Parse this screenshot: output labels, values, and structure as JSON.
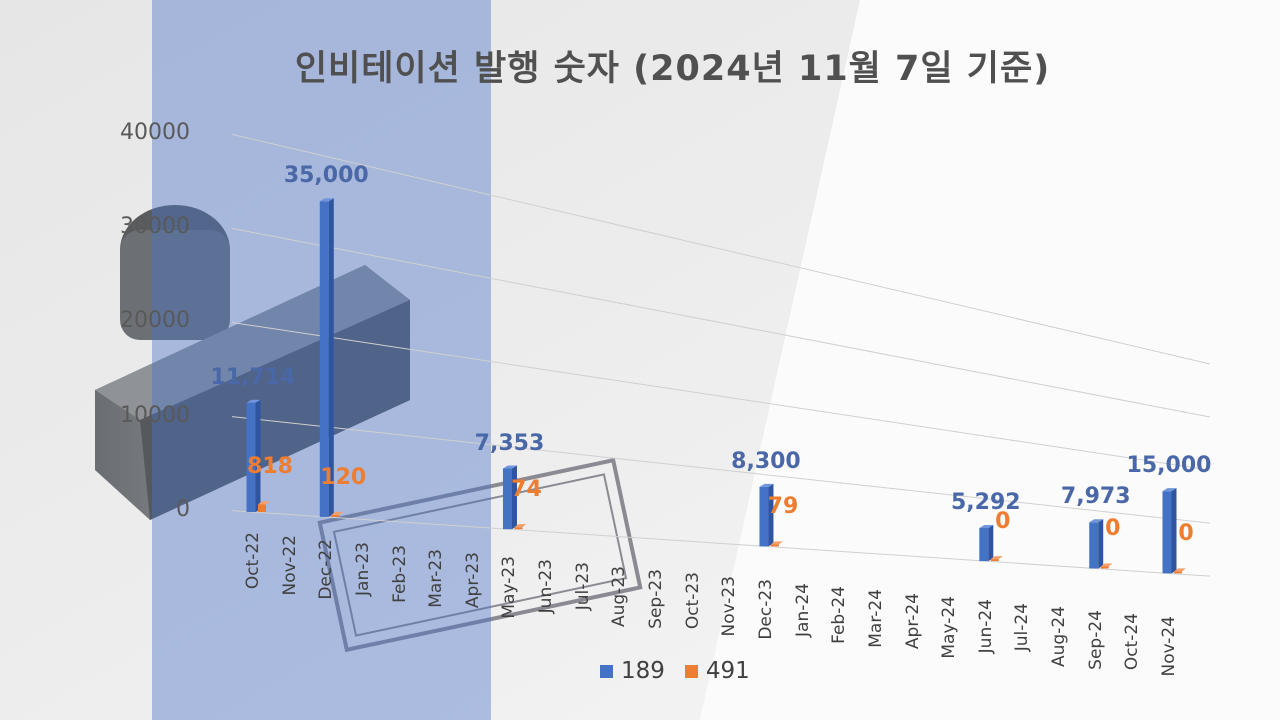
{
  "chart_data": {
    "type": "bar",
    "title": "인비테이션 발행 숫자 (2024년 11월 7일 기준)",
    "categories": [
      "Oct-22",
      "Nov-22",
      "Dec-22",
      "Jan-23",
      "Feb-23",
      "Mar-23",
      "Apr-23",
      "May-23",
      "Jun-23",
      "Jul-23",
      "Aug-23",
      "Sep-23",
      "Oct-23",
      "Nov-23",
      "Dec-23",
      "Jan-24",
      "Feb-24",
      "Mar-24",
      "Apr-24",
      "May-24",
      "Jun-24",
      "Jul-24",
      "Aug-24",
      "Sep-24",
      "Oct-24",
      "Nov-24"
    ],
    "series": [
      {
        "name": "189",
        "color": "#4472C4",
        "values": [
          11714,
          null,
          35000,
          null,
          null,
          null,
          null,
          7353,
          null,
          null,
          null,
          null,
          null,
          null,
          8300,
          null,
          null,
          null,
          null,
          null,
          5292,
          null,
          null,
          7973,
          null,
          15000
        ],
        "labels": [
          "11,714",
          "",
          "35,000",
          "",
          "",
          "",
          "",
          "7,353",
          "",
          "",
          "",
          "",
          "",
          "",
          "8,300",
          "",
          "",
          "",
          "",
          "",
          "5,292",
          "",
          "",
          "7,973",
          "",
          "15,000"
        ]
      },
      {
        "name": "491",
        "color": "#ED7D31",
        "values": [
          818,
          null,
          120,
          null,
          null,
          null,
          null,
          74,
          null,
          null,
          null,
          null,
          null,
          null,
          79,
          null,
          null,
          null,
          null,
          null,
          0,
          null,
          null,
          0,
          null,
          0
        ],
        "labels": [
          "818",
          "",
          "120",
          "",
          "",
          "",
          "",
          "74",
          "",
          "",
          "",
          "",
          "",
          "",
          "79",
          "",
          "",
          "",
          "",
          "",
          "0",
          "",
          "",
          "0",
          "",
          "0"
        ]
      }
    ],
    "yticks": [
      "0",
      "10000",
      "20000",
      "30000",
      "40000"
    ],
    "ylim": [
      0,
      40000
    ],
    "legend_position": "bottom",
    "grid": true
  }
}
